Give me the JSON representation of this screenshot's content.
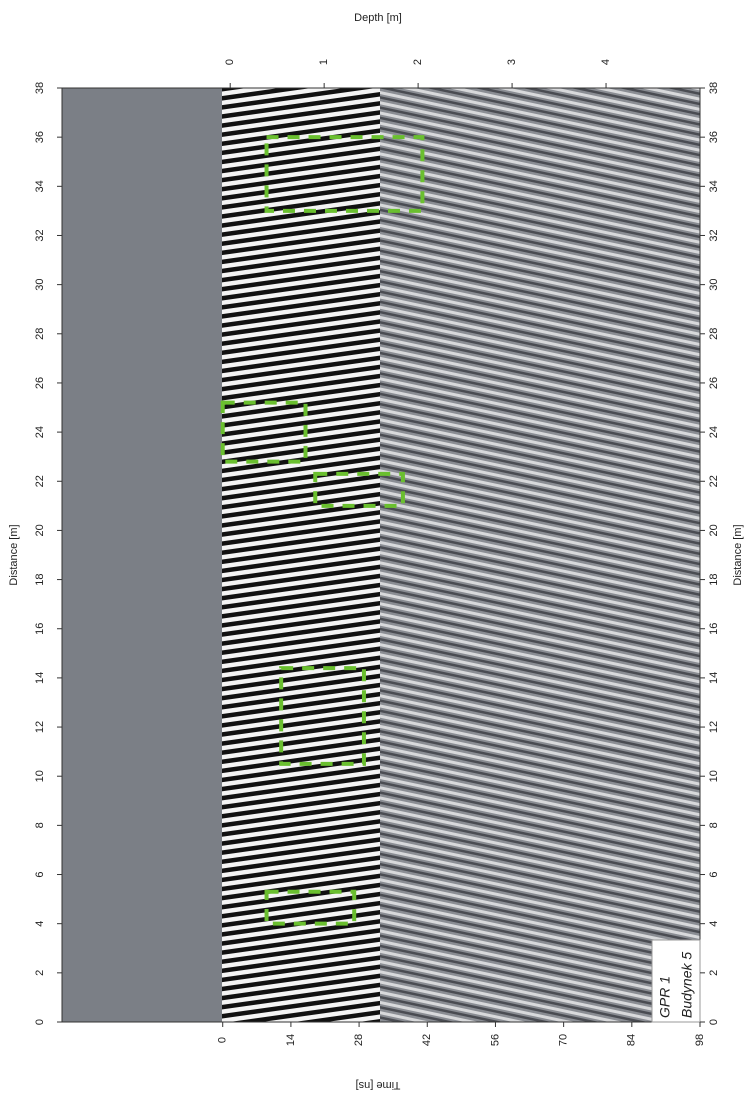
{
  "chart_data": {
    "type": "radargram",
    "distance_axis": {
      "label": "Distance [m]",
      "lim": [
        0,
        38
      ],
      "ticks": [
        0,
        2,
        4,
        6,
        8,
        10,
        12,
        14,
        16,
        18,
        20,
        22,
        24,
        26,
        28,
        30,
        32,
        34,
        36,
        38
      ]
    },
    "time_axis": {
      "label": "Time [ns]",
      "lim": [
        -33,
        98
      ],
      "ticks": [
        0,
        14,
        28,
        42,
        56,
        70,
        84,
        98
      ]
    },
    "depth_axis": {
      "label": "Depth [m]",
      "lim": [
        -1.79,
        5.0
      ],
      "ticks": [
        0,
        1,
        2,
        3,
        4
      ]
    },
    "annotation": [
      "GPR 1",
      "Budynek 5"
    ],
    "color": "#6abf2f",
    "anomalies": [
      {
        "distance": [
          33,
          36
        ],
        "time": [
          9,
          41
        ]
      },
      {
        "distance": [
          22.8,
          25.2
        ],
        "time": [
          0,
          17
        ]
      },
      {
        "distance": [
          21,
          22.3
        ],
        "time": [
          19,
          37
        ]
      },
      {
        "distance": [
          10.5,
          14.4
        ],
        "time": [
          12,
          29
        ]
      },
      {
        "distance": [
          4,
          5.3
        ],
        "time": [
          9,
          27
        ]
      }
    ]
  }
}
